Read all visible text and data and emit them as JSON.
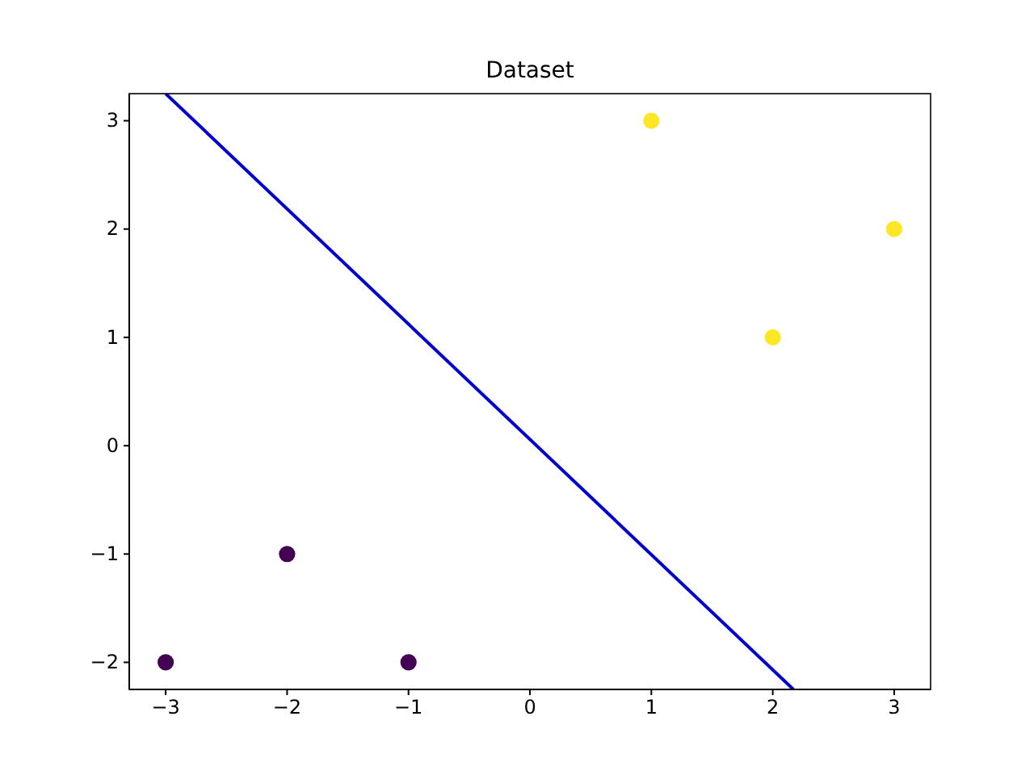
{
  "chart_data": {
    "type": "scatter",
    "title": "Dataset",
    "xlim": [
      -3.3,
      3.3
    ],
    "ylim": [
      -2.25,
      3.25
    ],
    "xticks": [
      -3,
      -2,
      -1,
      0,
      1,
      2,
      3
    ],
    "yticks": [
      -2,
      -1,
      0,
      1,
      2,
      3
    ],
    "grid": false,
    "series": [
      {
        "color": "#440154",
        "marker": "circle",
        "x": [
          -3,
          -2,
          -1
        ],
        "values": [
          -2,
          -1,
          -2
        ]
      },
      {
        "color": "#fde725",
        "marker": "circle",
        "x": [
          1,
          2,
          3
        ],
        "values": [
          3,
          1,
          2
        ]
      },
      {
        "type": "line",
        "color": "#0000cc",
        "line_style": "solid",
        "x": [
          -3,
          2.17
        ],
        "values": [
          3.25,
          -2.25
        ]
      }
    ]
  }
}
